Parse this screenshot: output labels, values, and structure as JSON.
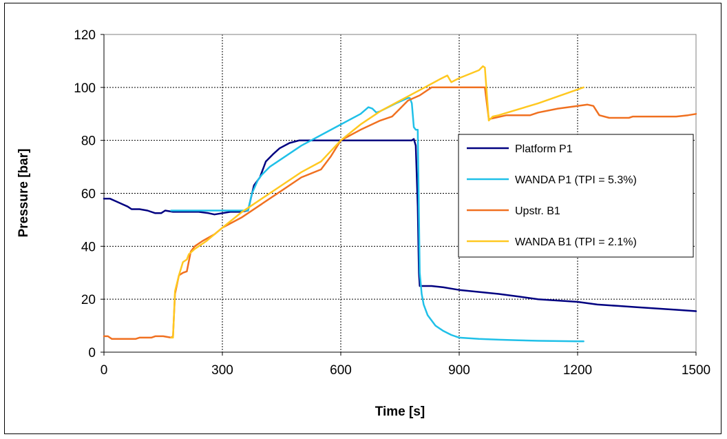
{
  "chart_data": {
    "type": "line",
    "title": "",
    "xlabel": "Time [s]",
    "ylabel": "Pressure [bar]",
    "xlim": [
      0,
      1500
    ],
    "ylim": [
      0,
      120
    ],
    "xticks": [
      0,
      300,
      600,
      900,
      1200,
      1500
    ],
    "yticks": [
      0,
      20,
      40,
      60,
      80,
      100,
      120
    ],
    "grid": true,
    "legend_position": "right",
    "series": [
      {
        "name": "Platform P1",
        "color": "#000080",
        "points": [
          [
            0,
            58
          ],
          [
            15,
            58
          ],
          [
            30,
            57
          ],
          [
            45,
            56
          ],
          [
            60,
            55
          ],
          [
            70,
            54
          ],
          [
            90,
            54
          ],
          [
            110,
            53.5
          ],
          [
            130,
            52.5
          ],
          [
            145,
            52.5
          ],
          [
            155,
            53.5
          ],
          [
            175,
            53
          ],
          [
            200,
            53
          ],
          [
            240,
            53
          ],
          [
            265,
            52.5
          ],
          [
            280,
            52
          ],
          [
            300,
            52.5
          ],
          [
            320,
            53
          ],
          [
            345,
            53
          ],
          [
            365,
            53.5
          ],
          [
            372,
            58
          ],
          [
            380,
            63
          ],
          [
            395,
            66
          ],
          [
            410,
            72
          ],
          [
            430,
            75
          ],
          [
            445,
            77
          ],
          [
            470,
            79
          ],
          [
            495,
            80
          ],
          [
            600,
            80
          ],
          [
            780,
            80
          ],
          [
            785,
            80.5
          ],
          [
            790,
            78
          ],
          [
            795,
            55
          ],
          [
            798,
            30
          ],
          [
            800,
            25
          ],
          [
            830,
            25
          ],
          [
            860,
            24.5
          ],
          [
            880,
            24
          ],
          [
            900,
            23.5
          ],
          [
            1000,
            22
          ],
          [
            1050,
            21
          ],
          [
            1100,
            20
          ],
          [
            1150,
            19.5
          ],
          [
            1200,
            19
          ],
          [
            1250,
            18
          ],
          [
            1300,
            17.5
          ],
          [
            1350,
            17
          ],
          [
            1400,
            16.5
          ],
          [
            1450,
            16
          ],
          [
            1500,
            15.5
          ]
        ]
      },
      {
        "name": "WANDA P1 (TPI = 5.3%)",
        "color": "#1fc0e8",
        "points": [
          [
            170,
            53.5
          ],
          [
            300,
            53.5
          ],
          [
            365,
            53.5
          ],
          [
            375,
            60
          ],
          [
            390,
            65
          ],
          [
            400,
            67
          ],
          [
            420,
            70
          ],
          [
            450,
            73
          ],
          [
            500,
            78
          ],
          [
            550,
            82
          ],
          [
            600,
            86
          ],
          [
            650,
            90
          ],
          [
            670,
            92.5
          ],
          [
            680,
            92
          ],
          [
            690,
            90.5
          ],
          [
            700,
            91
          ],
          [
            740,
            94
          ],
          [
            770,
            96
          ],
          [
            775,
            96
          ],
          [
            780,
            94
          ],
          [
            785,
            85
          ],
          [
            790,
            84
          ],
          [
            795,
            84
          ],
          [
            800,
            30
          ],
          [
            805,
            22
          ],
          [
            810,
            18
          ],
          [
            820,
            14
          ],
          [
            840,
            10
          ],
          [
            860,
            8
          ],
          [
            880,
            6.5
          ],
          [
            900,
            5.5
          ],
          [
            950,
            5
          ],
          [
            1000,
            4.7
          ],
          [
            1050,
            4.5
          ],
          [
            1100,
            4.3
          ],
          [
            1150,
            4.2
          ],
          [
            1200,
            4.1
          ],
          [
            1215,
            4.1
          ]
        ]
      },
      {
        "name": "Upstr. B1",
        "color": "#f07020",
        "points": [
          [
            0,
            6
          ],
          [
            10,
            6
          ],
          [
            20,
            5
          ],
          [
            50,
            5
          ],
          [
            80,
            5
          ],
          [
            90,
            5.5
          ],
          [
            120,
            5.5
          ],
          [
            130,
            6
          ],
          [
            150,
            6
          ],
          [
            170,
            5.5
          ],
          [
            175,
            6
          ],
          [
            180,
            22
          ],
          [
            190,
            29
          ],
          [
            200,
            30
          ],
          [
            210,
            30.5
          ],
          [
            220,
            38
          ],
          [
            230,
            40
          ],
          [
            250,
            42
          ],
          [
            280,
            44.5
          ],
          [
            300,
            47
          ],
          [
            350,
            51
          ],
          [
            400,
            56
          ],
          [
            450,
            61
          ],
          [
            500,
            66
          ],
          [
            550,
            69
          ],
          [
            575,
            74
          ],
          [
            600,
            80
          ],
          [
            650,
            84
          ],
          [
            700,
            87.5
          ],
          [
            730,
            89
          ],
          [
            750,
            92
          ],
          [
            770,
            95
          ],
          [
            800,
            97
          ],
          [
            830,
            100
          ],
          [
            960,
            100
          ],
          [
            965,
            100
          ],
          [
            975,
            88
          ],
          [
            990,
            88.5
          ],
          [
            1020,
            89.5
          ],
          [
            1080,
            89.5
          ],
          [
            1100,
            90.5
          ],
          [
            1150,
            92
          ],
          [
            1200,
            93
          ],
          [
            1225,
            93.5
          ],
          [
            1240,
            93
          ],
          [
            1255,
            89.5
          ],
          [
            1280,
            88.5
          ],
          [
            1330,
            88.5
          ],
          [
            1340,
            89
          ],
          [
            1450,
            89
          ],
          [
            1480,
            89.5
          ],
          [
            1500,
            90
          ]
        ]
      },
      {
        "name": "WANDA B1 (TPI = 2.1%)",
        "color": "#ffc820",
        "points": [
          [
            170,
            5.5
          ],
          [
            175,
            5.5
          ],
          [
            180,
            23
          ],
          [
            190,
            29
          ],
          [
            200,
            34
          ],
          [
            210,
            35
          ],
          [
            215,
            37
          ],
          [
            230,
            39
          ],
          [
            260,
            42
          ],
          [
            300,
            47
          ],
          [
            350,
            53
          ],
          [
            400,
            58
          ],
          [
            450,
            63
          ],
          [
            500,
            68
          ],
          [
            550,
            72
          ],
          [
            600,
            80
          ],
          [
            650,
            86
          ],
          [
            700,
            91
          ],
          [
            750,
            95
          ],
          [
            800,
            99
          ],
          [
            850,
            103
          ],
          [
            870,
            104.5
          ],
          [
            880,
            102
          ],
          [
            900,
            103.5
          ],
          [
            950,
            106.5
          ],
          [
            960,
            108
          ],
          [
            965,
            107.5
          ],
          [
            975,
            87.5
          ],
          [
            985,
            89
          ],
          [
            1000,
            89.5
          ],
          [
            1100,
            94
          ],
          [
            1215,
            100
          ]
        ]
      }
    ]
  }
}
